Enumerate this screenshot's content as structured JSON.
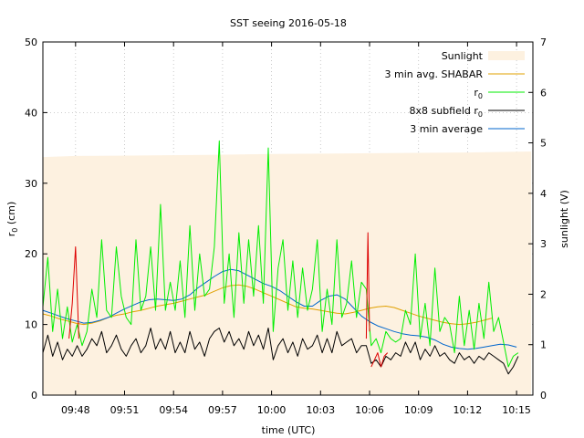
{
  "chart_data": {
    "type": "line",
    "title": "SST seeing 2016-05-18",
    "xlabel": "time (UTC)",
    "ylabel": "r_0 (cm)",
    "y2label": "sunlight (V)",
    "xlim": [
      46.0,
      76.0
    ],
    "ylim": [
      0,
      50
    ],
    "y2lim": [
      0,
      7
    ],
    "xticks": [
      {
        "value": 48,
        "label": "09:48"
      },
      {
        "value": 51,
        "label": "09:51"
      },
      {
        "value": 54,
        "label": "09:54"
      },
      {
        "value": 57,
        "label": "09:57"
      },
      {
        "value": 60,
        "label": "10:00"
      },
      {
        "value": 63,
        "label": "10:03"
      },
      {
        "value": 66,
        "label": "10:06"
      },
      {
        "value": 69,
        "label": "10:09"
      },
      {
        "value": 72,
        "label": "10:12"
      },
      {
        "value": 75,
        "label": "10:15"
      }
    ],
    "yticks": [
      0,
      10,
      20,
      30,
      40,
      50
    ],
    "y2ticks": [
      0,
      1,
      2,
      3,
      4,
      5,
      6,
      7
    ],
    "grid": true,
    "legend_position": "top-right",
    "legend": [
      {
        "id": "sunlight",
        "label": "Sunlight",
        "kind": "fill",
        "color": "#fdf1e0"
      },
      {
        "id": "shabar",
        "label": "3 min avg. SHABAR",
        "kind": "line",
        "color": "#e0a000"
      },
      {
        "id": "r0",
        "label": "r",
        "sub": "0",
        "kind": "line",
        "color": "#00ee00"
      },
      {
        "id": "sub8",
        "label": "8x8 subfield r",
        "sub": "0",
        "kind": "line",
        "color": "#000000"
      },
      {
        "id": "avg3",
        "label": "3 min average",
        "kind": "line",
        "color": "#0066cc"
      }
    ],
    "series": [
      {
        "id": "sunlight",
        "type": "area",
        "axis": "y2",
        "color": "#fdf1e0",
        "x": [
          46.0,
          48.0,
          52.0,
          56.0,
          60.0,
          64.0,
          68.0,
          72.0,
          75.9
        ],
        "y": [
          4.72,
          4.74,
          4.75,
          4.76,
          4.78,
          4.79,
          4.8,
          4.81,
          4.83
        ]
      },
      {
        "id": "shabar",
        "axis": "y",
        "color": "#e0a000",
        "x": [
          46.0,
          46.5,
          47.0,
          47.5,
          48.0,
          48.5,
          49.0,
          49.5,
          50.0,
          50.5,
          51.0,
          51.5,
          52.0,
          52.5,
          53.0,
          53.5,
          54.0,
          54.5,
          55.0,
          55.5,
          56.0,
          56.5,
          57.0,
          57.5,
          58.0,
          58.5,
          59.0,
          59.5,
          60.0,
          60.5,
          61.0,
          61.5,
          62.0,
          62.5,
          63.0,
          63.5,
          64.0,
          64.5,
          65.0,
          65.5,
          66.0,
          66.5,
          67.0,
          67.5,
          68.0,
          68.5,
          69.0,
          69.5,
          70.0,
          70.5,
          71.0,
          71.5,
          72.0,
          72.5,
          73.0,
          73.5
        ],
        "y": [
          11.5,
          11.2,
          10.8,
          10.5,
          10.2,
          10.0,
          10.2,
          10.5,
          11.0,
          11.3,
          11.5,
          11.8,
          12.0,
          12.3,
          12.6,
          12.8,
          13.0,
          13.3,
          13.6,
          13.9,
          14.2,
          14.7,
          15.2,
          15.5,
          15.6,
          15.4,
          15.0,
          14.5,
          14.0,
          13.5,
          13.0,
          12.5,
          12.3,
          12.2,
          12.0,
          11.8,
          11.6,
          11.5,
          11.7,
          12.0,
          12.3,
          12.5,
          12.6,
          12.4,
          12.0,
          11.6,
          11.2,
          10.9,
          10.6,
          10.3,
          10.1,
          10.0,
          10.1,
          10.3,
          10.6,
          10.9
        ]
      },
      {
        "id": "avg3",
        "axis": "y",
        "color": "#0066cc",
        "x": [
          46.0,
          46.5,
          47.0,
          47.5,
          48.0,
          48.5,
          49.0,
          49.5,
          50.0,
          50.5,
          51.0,
          51.5,
          52.0,
          52.5,
          53.0,
          53.5,
          54.0,
          54.5,
          55.0,
          55.5,
          56.0,
          56.5,
          57.0,
          57.5,
          58.0,
          58.5,
          59.0,
          59.5,
          60.0,
          60.5,
          61.0,
          61.5,
          62.0,
          62.5,
          63.0,
          63.5,
          64.0,
          64.5,
          65.0,
          65.5,
          66.0,
          66.5,
          67.0,
          67.5,
          68.0,
          68.5,
          69.0,
          69.5,
          70.0,
          70.5,
          71.0,
          71.5,
          72.0,
          72.5,
          73.0,
          73.5,
          74.0,
          74.5,
          75.0
        ],
        "y": [
          12.0,
          11.6,
          11.2,
          10.8,
          10.5,
          10.2,
          10.3,
          10.6,
          11.0,
          11.6,
          12.2,
          12.7,
          13.2,
          13.5,
          13.6,
          13.5,
          13.4,
          13.6,
          14.2,
          15.2,
          16.0,
          16.8,
          17.5,
          17.8,
          17.6,
          17.0,
          16.4,
          15.8,
          15.4,
          14.8,
          14.0,
          13.2,
          12.6,
          12.6,
          13.4,
          14.0,
          14.2,
          13.6,
          12.4,
          11.2,
          10.4,
          9.8,
          9.4,
          9.0,
          8.7,
          8.5,
          8.4,
          8.2,
          7.8,
          7.2,
          6.8,
          6.6,
          6.5,
          6.6,
          6.8,
          7.0,
          7.2,
          7.1,
          6.8
        ]
      },
      {
        "id": "r0",
        "axis": "y",
        "color": "#00ee00",
        "x": [
          46.0,
          46.3,
          46.6,
          46.9,
          47.2,
          47.5,
          47.8,
          48.1,
          48.4,
          48.7,
          49.0,
          49.3,
          49.6,
          49.9,
          50.2,
          50.5,
          50.8,
          51.1,
          51.4,
          51.7,
          52.0,
          52.3,
          52.6,
          52.9,
          53.2,
          53.5,
          53.8,
          54.1,
          54.4,
          54.7,
          55.0,
          55.3,
          55.6,
          55.9,
          56.2,
          56.5,
          56.8,
          57.1,
          57.4,
          57.7,
          58.0,
          58.3,
          58.6,
          58.9,
          59.2,
          59.5,
          59.8,
          60.1,
          60.4,
          60.7,
          61.0,
          61.3,
          61.6,
          61.9,
          62.2,
          62.5,
          62.8,
          63.1,
          63.4,
          63.7,
          64.0,
          64.3,
          64.6,
          64.9,
          65.2,
          65.5,
          65.8,
          66.1,
          66.4,
          66.7,
          67.0,
          67.3,
          67.6,
          67.9,
          68.2,
          68.5,
          68.8,
          69.1,
          69.4,
          69.7,
          70.0,
          70.3,
          70.6,
          70.9,
          71.2,
          71.5,
          71.8,
          72.1,
          72.4,
          72.7,
          73.0,
          73.3,
          73.6,
          73.9,
          74.2,
          74.5,
          74.8,
          75.1
        ],
        "y": [
          12.5,
          19.5,
          9.0,
          15.0,
          8.0,
          12.5,
          7.5,
          10.0,
          7.0,
          9.0,
          15.0,
          11.0,
          22.0,
          12.0,
          11.0,
          21.0,
          14.0,
          11.0,
          10.0,
          22.0,
          12.0,
          14.0,
          21.0,
          12.0,
          27.0,
          12.0,
          16.0,
          12.0,
          19.0,
          11.0,
          24.0,
          12.0,
          20.0,
          14.0,
          15.0,
          21.0,
          36.0,
          13.0,
          20.0,
          11.0,
          23.0,
          13.0,
          22.0,
          14.0,
          24.0,
          13.0,
          35.0,
          9.0,
          18.0,
          22.0,
          12.0,
          19.0,
          11.0,
          18.0,
          12.0,
          15.0,
          22.0,
          9.0,
          15.0,
          10.0,
          22.0,
          11.0,
          13.0,
          19.0,
          11.0,
          16.0,
          15.0,
          7.0,
          8.0,
          6.0,
          9.0,
          8.0,
          7.5,
          8.0,
          12.0,
          10.0,
          20.0,
          8.0,
          13.0,
          7.0,
          18.0,
          9.0,
          11.0,
          10.0,
          6.0,
          14.0,
          7.0,
          12.0,
          6.5,
          13.0,
          8.0,
          16.0,
          9.0,
          11.0,
          7.5,
          4.0,
          5.5,
          6.0
        ]
      },
      {
        "id": "sub8",
        "axis": "y",
        "color": "#000000",
        "x": [
          46.0,
          46.3,
          46.6,
          46.9,
          47.2,
          47.5,
          47.8,
          48.1,
          48.4,
          48.7,
          49.0,
          49.3,
          49.6,
          49.9,
          50.2,
          50.5,
          50.8,
          51.1,
          51.4,
          51.7,
          52.0,
          52.3,
          52.6,
          52.9,
          53.2,
          53.5,
          53.8,
          54.1,
          54.4,
          54.7,
          55.0,
          55.3,
          55.6,
          55.9,
          56.2,
          56.5,
          56.8,
          57.1,
          57.4,
          57.7,
          58.0,
          58.3,
          58.6,
          58.9,
          59.2,
          59.5,
          59.8,
          60.1,
          60.4,
          60.7,
          61.0,
          61.3,
          61.6,
          61.9,
          62.2,
          62.5,
          62.8,
          63.1,
          63.4,
          63.7,
          64.0,
          64.3,
          64.6,
          64.9,
          65.2,
          65.5,
          65.8,
          66.1,
          66.4,
          66.7,
          67.0,
          67.3,
          67.6,
          67.9,
          68.2,
          68.5,
          68.8,
          69.1,
          69.4,
          69.7,
          70.0,
          70.3,
          70.6,
          70.9,
          71.2,
          71.5,
          71.8,
          72.1,
          72.4,
          72.7,
          73.0,
          73.3,
          73.6,
          73.9,
          74.2,
          74.5,
          74.8,
          75.1
        ],
        "y": [
          6.0,
          8.5,
          5.5,
          7.5,
          5.0,
          6.5,
          5.5,
          7.0,
          5.5,
          6.5,
          8.0,
          7.0,
          9.0,
          6.0,
          7.0,
          8.5,
          6.5,
          5.5,
          7.0,
          8.0,
          6.0,
          7.0,
          9.5,
          6.5,
          8.0,
          6.5,
          9.0,
          6.0,
          7.5,
          6.0,
          9.0,
          6.5,
          7.5,
          5.5,
          8.0,
          9.0,
          9.5,
          7.5,
          9.0,
          7.0,
          8.0,
          6.5,
          9.0,
          7.0,
          8.5,
          6.5,
          9.5,
          5.0,
          7.0,
          8.0,
          6.0,
          7.5,
          5.5,
          8.0,
          6.5,
          7.0,
          8.5,
          6.0,
          8.0,
          6.0,
          9.0,
          7.0,
          7.5,
          8.0,
          6.0,
          7.0,
          7.0,
          4.5,
          5.0,
          4.0,
          5.5,
          5.0,
          6.0,
          5.5,
          7.5,
          6.0,
          7.5,
          5.0,
          6.5,
          5.5,
          7.0,
          5.5,
          6.0,
          5.0,
          4.5,
          6.0,
          5.0,
          5.5,
          4.5,
          5.5,
          5.0,
          6.0,
          5.5,
          5.0,
          4.5,
          3.0,
          4.0,
          5.5
        ]
      },
      {
        "id": "r0_red",
        "axis": "y",
        "color": "#dd0000",
        "segments": [
          {
            "x": [
              47.6,
              47.8,
              48.0,
              48.2
            ],
            "y": [
              8.0,
              13.0,
              21.0,
              8.0
            ]
          },
          {
            "x": [
              65.8,
              65.9,
              66.0
            ],
            "y": [
              8.0,
              23.0,
              9.0
            ]
          },
          {
            "x": [
              66.1,
              66.3,
              66.5,
              66.7,
              66.9,
              67.1
            ],
            "y": [
              4.0,
              5.0,
              6.0,
              4.0,
              5.5,
              6.0
            ]
          }
        ]
      }
    ]
  }
}
